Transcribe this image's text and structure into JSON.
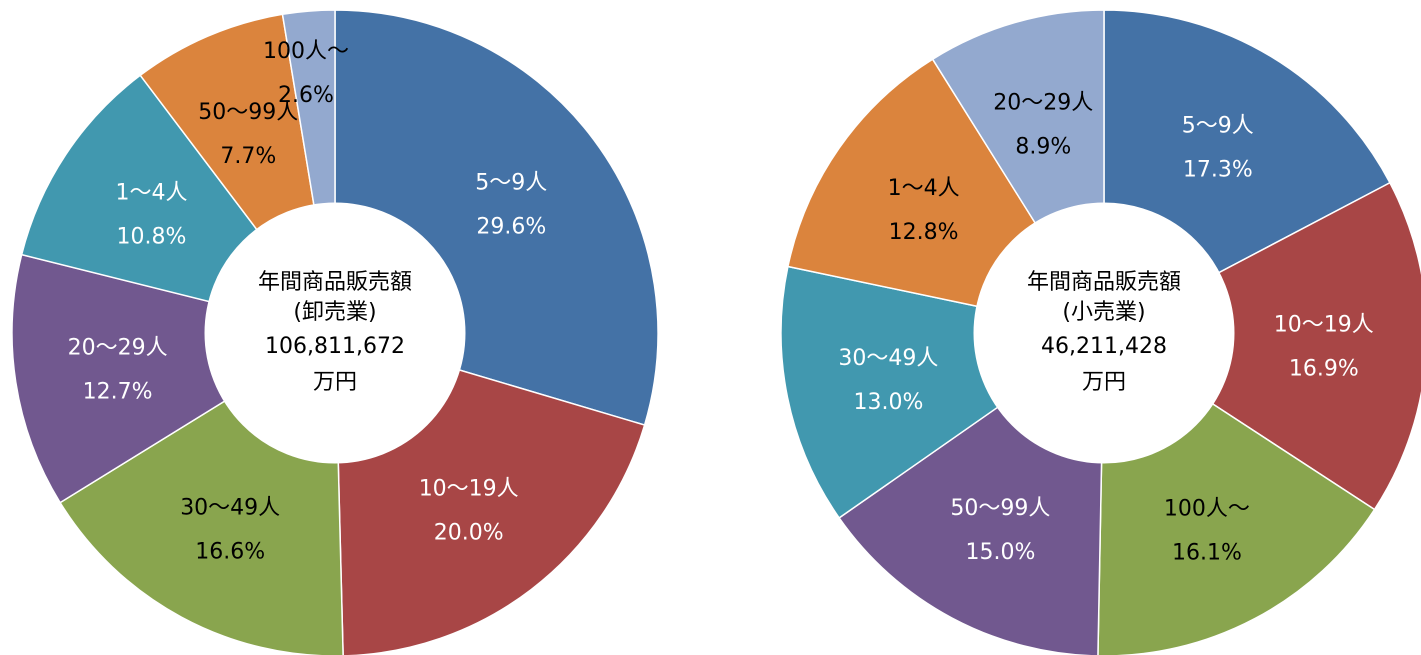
{
  "chart_data": [
    {
      "type": "pie",
      "center_text": [
        "年間商品販売額",
        "(卸売業)",
        "106,811,672",
        "万円"
      ],
      "slices": [
        {
          "label": "5〜9人",
          "percent_text": "29.6%",
          "value": 29.6,
          "color": "#4472A6",
          "text_color": "#ffffff"
        },
        {
          "label": "10〜19人",
          "percent_text": "20.0%",
          "value": 20.0,
          "color": "#A84646",
          "text_color": "#ffffff"
        },
        {
          "label": "30〜49人",
          "percent_text": "16.6%",
          "value": 16.6,
          "color": "#89A54E",
          "text_color": "#000000"
        },
        {
          "label": "20〜29人",
          "percent_text": "12.7%",
          "value": 12.7,
          "color": "#71588F",
          "text_color": "#ffffff"
        },
        {
          "label": "1〜4人",
          "percent_text": "10.8%",
          "value": 10.8,
          "color": "#4198AF",
          "text_color": "#ffffff"
        },
        {
          "label": "50〜99人",
          "percent_text": "7.7%",
          "value": 7.7,
          "color": "#DB843D",
          "text_color": "#000000"
        },
        {
          "label": "100人〜",
          "percent_text": "2.6%",
          "value": 2.6,
          "color": "#93A9CF",
          "text_color": "#000000"
        }
      ]
    },
    {
      "type": "pie",
      "center_text": [
        "年間商品販売額",
        "(小売業)",
        "46,211,428",
        "万円"
      ],
      "slices": [
        {
          "label": "5〜9人",
          "percent_text": "17.3%",
          "value": 17.3,
          "color": "#4472A6",
          "text_color": "#ffffff"
        },
        {
          "label": "10〜19人",
          "percent_text": "16.9%",
          "value": 16.9,
          "color": "#A84646",
          "text_color": "#ffffff"
        },
        {
          "label": "100人〜",
          "percent_text": "16.1%",
          "value": 16.1,
          "color": "#89A54E",
          "text_color": "#000000"
        },
        {
          "label": "50〜99人",
          "percent_text": "15.0%",
          "value": 15.0,
          "color": "#71588F",
          "text_color": "#ffffff"
        },
        {
          "label": "30〜49人",
          "percent_text": "13.0%",
          "value": 13.0,
          "color": "#4198AF",
          "text_color": "#ffffff"
        },
        {
          "label": "1〜4人",
          "percent_text": "12.8%",
          "value": 12.8,
          "color": "#DB843D",
          "text_color": "#000000"
        },
        {
          "label": "20〜29人",
          "percent_text": "8.9%",
          "value": 8.9,
          "color": "#93A9CF",
          "text_color": "#000000"
        }
      ]
    }
  ]
}
